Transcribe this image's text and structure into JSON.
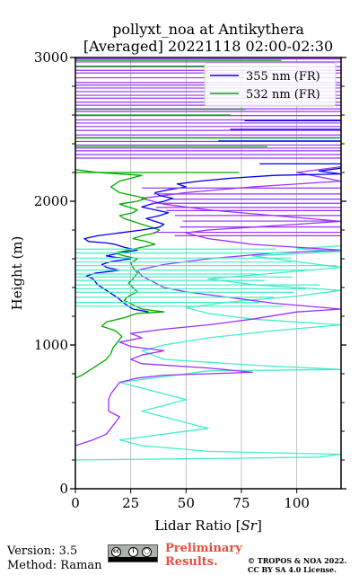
{
  "chart_data": {
    "type": "line",
    "title_line1": "pollyxt_noa at Antikythera",
    "title_line2": "[Averaged] 20221118 02:00-02:30",
    "xlabel": "Lidar Ratio [",
    "xlabel_sym": "Sr",
    "xlabel_end": "]",
    "ylabel": "Height (m)",
    "xlim": [
      0,
      120
    ],
    "ylim": [
      0,
      3000
    ],
    "xticks": [
      0,
      25,
      50,
      75,
      100
    ],
    "yticks": [
      0,
      1000,
      2000,
      3000
    ],
    "grid": "x",
    "legend_position": "top-right",
    "series": [
      {
        "name": "355 nm (FR)",
        "color": "#0000ee",
        "points": [
          [
            33,
            1230
          ],
          [
            26,
            1250
          ],
          [
            22,
            1290
          ],
          [
            19,
            1330
          ],
          [
            15,
            1370
          ],
          [
            12,
            1400
          ],
          [
            10,
            1420
          ],
          [
            8,
            1460
          ],
          [
            5,
            1480
          ],
          [
            9,
            1500
          ],
          [
            20,
            1520
          ],
          [
            14,
            1540
          ],
          [
            12,
            1560
          ],
          [
            16,
            1580
          ],
          [
            25,
            1600
          ],
          [
            18,
            1610
          ],
          [
            14,
            1620
          ],
          [
            20,
            1640
          ],
          [
            28,
            1660
          ],
          [
            22,
            1680
          ],
          [
            18,
            1700
          ],
          [
            14,
            1710
          ],
          [
            6,
            1720
          ],
          [
            4,
            1740
          ],
          [
            10,
            1760
          ],
          [
            20,
            1780
          ],
          [
            30,
            1800
          ],
          [
            38,
            1820
          ],
          [
            40,
            1840
          ],
          [
            36,
            1860
          ],
          [
            32,
            1880
          ],
          [
            38,
            1900
          ],
          [
            42,
            1920
          ],
          [
            36,
            1940
          ],
          [
            30,
            1960
          ],
          [
            34,
            1980
          ],
          [
            40,
            2000
          ],
          [
            44,
            2020
          ],
          [
            38,
            2040
          ],
          [
            36,
            2060
          ],
          [
            42,
            2080
          ],
          [
            50,
            2100
          ],
          [
            46,
            2120
          ],
          [
            56,
            2140
          ],
          [
            70,
            2160
          ],
          [
            90,
            2180
          ],
          [
            120,
            2190
          ],
          [
            110,
            2210
          ],
          [
            120,
            2230
          ]
        ]
      },
      {
        "name": "532 nm (FR)",
        "color": "#00aa00",
        "points": [
          [
            0,
            770
          ],
          [
            3,
            790
          ],
          [
            6,
            820
          ],
          [
            10,
            860
          ],
          [
            14,
            900
          ],
          [
            16,
            940
          ],
          [
            17,
            980
          ],
          [
            19,
            1020
          ],
          [
            21,
            1060
          ],
          [
            18,
            1100
          ],
          [
            12,
            1130
          ],
          [
            14,
            1160
          ],
          [
            22,
            1190
          ],
          [
            28,
            1220
          ],
          [
            40,
            1230
          ],
          [
            30,
            1250
          ],
          [
            26,
            1280
          ],
          [
            22,
            1310
          ],
          [
            24,
            1340
          ],
          [
            28,
            1370
          ],
          [
            26,
            1400
          ],
          [
            24,
            1430
          ],
          [
            26,
            1460
          ],
          [
            28,
            1500
          ],
          [
            26,
            1540
          ],
          [
            25,
            1570
          ],
          [
            28,
            1600
          ],
          [
            22,
            1620
          ],
          [
            18,
            1640
          ],
          [
            24,
            1660
          ],
          [
            30,
            1680
          ],
          [
            36,
            1700
          ],
          [
            32,
            1720
          ],
          [
            26,
            1740
          ],
          [
            30,
            1760
          ],
          [
            36,
            1780
          ],
          [
            38,
            1800
          ],
          [
            34,
            1820
          ],
          [
            30,
            1840
          ],
          [
            26,
            1860
          ],
          [
            22,
            1880
          ],
          [
            20,
            1900
          ],
          [
            26,
            1920
          ],
          [
            28,
            1940
          ],
          [
            24,
            1960
          ],
          [
            20,
            1980
          ],
          [
            28,
            2000
          ],
          [
            32,
            2020
          ],
          [
            26,
            2040
          ],
          [
            20,
            2060
          ],
          [
            18,
            2080
          ],
          [
            16,
            2100
          ],
          [
            20,
            2140
          ],
          [
            30,
            2180
          ],
          [
            10,
            2200
          ],
          [
            0,
            2220
          ]
        ]
      },
      {
        "name": "",
        "color": "#9b30ff",
        "points": [
          [
            0,
            300
          ],
          [
            8,
            340
          ],
          [
            14,
            380
          ],
          [
            16,
            420
          ],
          [
            18,
            460
          ],
          [
            20,
            500
          ],
          [
            15,
            540
          ],
          [
            15,
            580
          ],
          [
            15,
            620
          ],
          [
            16,
            660
          ],
          [
            18,
            700
          ],
          [
            20,
            740
          ],
          [
            28,
            770
          ],
          [
            40,
            790
          ],
          [
            80,
            810
          ],
          [
            60,
            840
          ],
          [
            30,
            870
          ],
          [
            25,
            900
          ],
          [
            30,
            930
          ],
          [
            40,
            960
          ],
          [
            25,
            990
          ],
          [
            20,
            1020
          ],
          [
            30,
            1050
          ],
          [
            25,
            1080
          ],
          [
            40,
            1110
          ],
          [
            60,
            1140
          ],
          [
            80,
            1180
          ],
          [
            100,
            1230
          ],
          [
            120,
            1250
          ],
          [
            90,
            1290
          ],
          [
            70,
            1330
          ],
          [
            50,
            1370
          ],
          [
            40,
            1400
          ],
          [
            35,
            1440
          ],
          [
            30,
            1480
          ],
          [
            28,
            1520
          ],
          [
            40,
            1560
          ],
          [
            60,
            1600
          ],
          [
            90,
            1640
          ],
          [
            120,
            1660
          ],
          [
            80,
            1700
          ],
          [
            60,
            1740
          ],
          [
            50,
            1780
          ],
          [
            60,
            1800
          ],
          [
            80,
            1820
          ],
          [
            100,
            1840
          ],
          [
            120,
            1860
          ],
          [
            90,
            1900
          ],
          [
            60,
            1940
          ],
          [
            40,
            1980
          ],
          [
            30,
            2020
          ],
          [
            50,
            2060
          ],
          [
            80,
            2100
          ],
          [
            120,
            2140
          ],
          [
            100,
            2200
          ],
          [
            120,
            2240
          ]
        ]
      },
      {
        "name": "",
        "color": "#3ff0c8",
        "points": [
          [
            0,
            200
          ],
          [
            60,
            210
          ],
          [
            110,
            220
          ],
          [
            120,
            240
          ],
          [
            60,
            260
          ],
          [
            30,
            300
          ],
          [
            20,
            340
          ],
          [
            40,
            380
          ],
          [
            60,
            420
          ],
          [
            50,
            460
          ],
          [
            40,
            500
          ],
          [
            30,
            540
          ],
          [
            40,
            580
          ],
          [
            50,
            620
          ],
          [
            40,
            660
          ],
          [
            30,
            700
          ],
          [
            20,
            740
          ],
          [
            40,
            780
          ],
          [
            60,
            820
          ],
          [
            120,
            830
          ],
          [
            80,
            860
          ],
          [
            40,
            900
          ],
          [
            30,
            960
          ],
          [
            40,
            1000
          ],
          [
            60,
            1050
          ],
          [
            90,
            1100
          ],
          [
            120,
            1140
          ],
          [
            80,
            1180
          ],
          [
            60,
            1220
          ],
          [
            50,
            1260
          ],
          [
            70,
            1300
          ],
          [
            100,
            1340
          ],
          [
            120,
            1380
          ],
          [
            80,
            1420
          ],
          [
            60,
            1460
          ],
          [
            90,
            1500
          ],
          [
            120,
            1540
          ],
          [
            100,
            1580
          ],
          [
            80,
            1620
          ],
          [
            120,
            1650
          ],
          [
            100,
            1670
          ],
          [
            120,
            1690
          ]
        ]
      }
    ]
  },
  "footer": {
    "version": "Version: 3.5",
    "method": "Method: Raman",
    "prelim_line1": "Preliminary",
    "prelim_line2": "Results.",
    "copyright_line1": "© TROPOS & NOA 2022.",
    "copyright_line2": "CC BY SA 4.0 License."
  }
}
